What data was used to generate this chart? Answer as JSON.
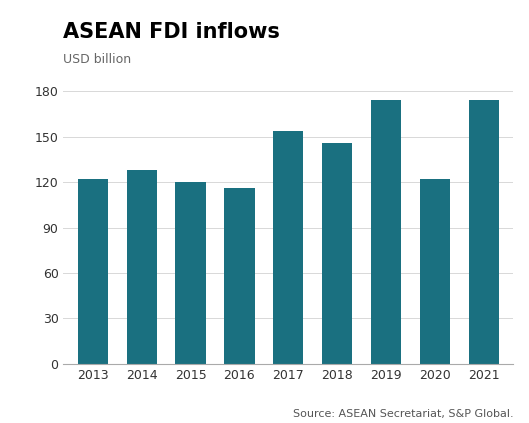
{
  "title": "ASEAN FDI inflows",
  "ylabel": "USD billion",
  "source": "Source: ASEAN Secretariat, S&P Global.",
  "years": [
    2013,
    2014,
    2015,
    2016,
    2017,
    2018,
    2019,
    2020,
    2021
  ],
  "values": [
    122,
    128,
    120,
    116,
    154,
    146,
    174,
    122,
    174
  ],
  "bar_color": "#1a7080",
  "ylim": [
    0,
    190
  ],
  "yticks": [
    0,
    30,
    60,
    90,
    120,
    150,
    180
  ],
  "background_color": "#ffffff",
  "title_fontsize": 15,
  "ylabel_fontsize": 9,
  "tick_fontsize": 9,
  "source_fontsize": 8
}
